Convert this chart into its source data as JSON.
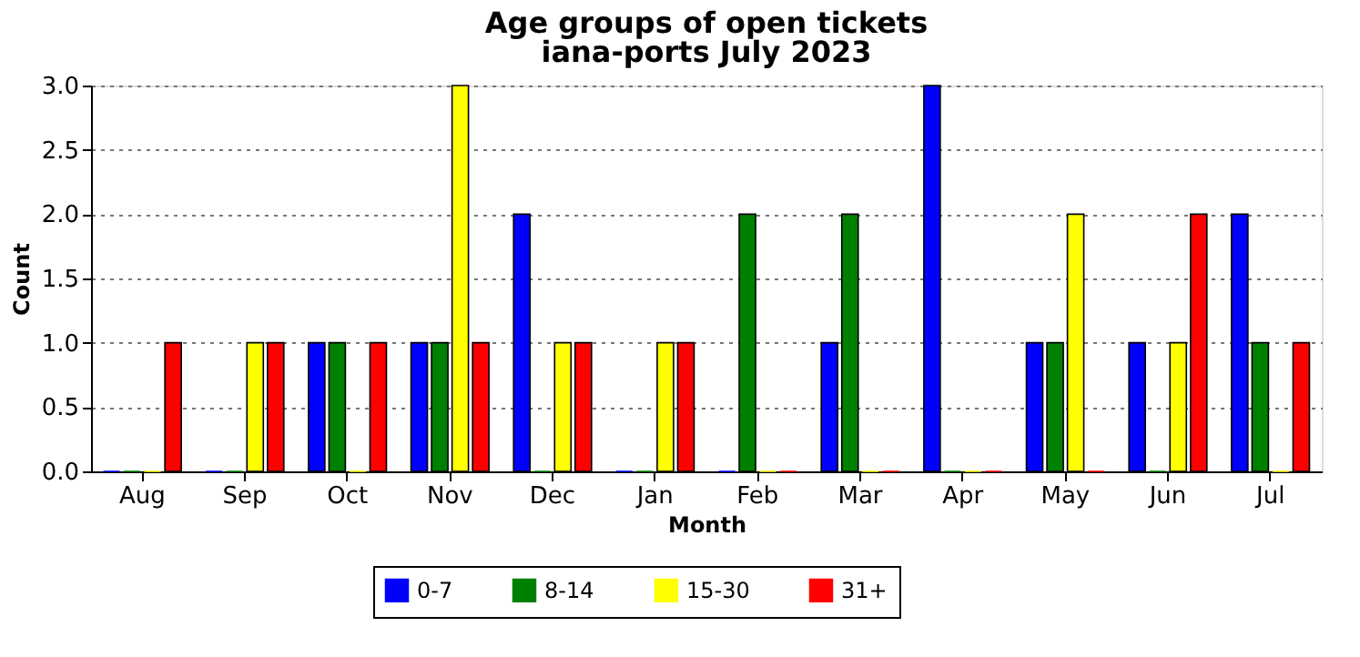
{
  "chart_data": {
    "type": "bar",
    "title": "Age groups of open tickets",
    "subtitle": "iana-ports July 2023",
    "xlabel": "Month",
    "ylabel": "Count",
    "categories": [
      "Aug",
      "Sep",
      "Oct",
      "Nov",
      "Dec",
      "Jan",
      "Feb",
      "Mar",
      "Apr",
      "May",
      "Jun",
      "Jul"
    ],
    "series": [
      {
        "name": "0-7",
        "color": "#0000ff",
        "values": [
          0,
          0,
          1,
          1,
          2,
          0,
          0,
          1,
          3,
          1,
          1,
          2
        ]
      },
      {
        "name": "8-14",
        "color": "#008000",
        "values": [
          0,
          0,
          1,
          1,
          0,
          0,
          2,
          2,
          0,
          1,
          0,
          1
        ]
      },
      {
        "name": "15-30",
        "color": "#ffff00",
        "values": [
          0,
          1,
          0,
          3,
          1,
          1,
          0,
          0,
          0,
          2,
          1,
          0
        ]
      },
      {
        "name": "31+",
        "color": "#ff0000",
        "values": [
          1,
          1,
          1,
          1,
          1,
          1,
          0,
          0,
          0,
          0,
          2,
          1
        ]
      }
    ],
    "ylim": [
      0,
      3
    ],
    "yticks": [
      {
        "value": 0,
        "label": "0.0"
      },
      {
        "value": 0.5,
        "label": "0.5"
      },
      {
        "value": 1,
        "label": "1.0"
      },
      {
        "value": 1.5,
        "label": "1.5"
      },
      {
        "value": 2,
        "label": "2.0"
      },
      {
        "value": 2.5,
        "label": "2.5"
      },
      {
        "value": 3,
        "label": "3.0"
      }
    ],
    "grid": "y",
    "legend": "bottom"
  }
}
